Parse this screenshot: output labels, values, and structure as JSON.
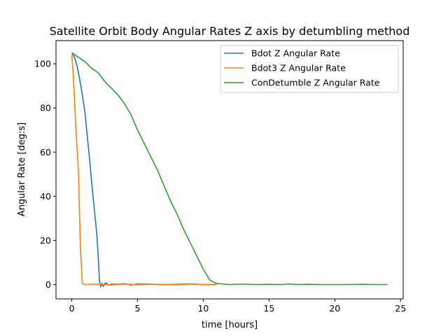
{
  "chart_data": {
    "type": "line",
    "title": "Satellite Orbit Body Angular Rates Z axis by detumbling method",
    "xlabel": "time [hours]",
    "ylabel": "Angular Rate [deg:s]",
    "xlim": [
      -1.2,
      25.2
    ],
    "ylim": [
      -6.5,
      110.5
    ],
    "xticks": [
      0,
      5,
      10,
      15,
      20,
      25
    ],
    "yticks": [
      0,
      20,
      40,
      60,
      80,
      100
    ],
    "legend_position": "top-right",
    "grid": false,
    "series": [
      {
        "name": "Bdot Z Angular Rate",
        "color": "#1f77b4",
        "points": [
          [
            0,
            105
          ],
          [
            0.2,
            103
          ],
          [
            0.4,
            99
          ],
          [
            0.6,
            93
          ],
          [
            0.8,
            86
          ],
          [
            1.0,
            78
          ],
          [
            1.1,
            72
          ],
          [
            1.2,
            66
          ],
          [
            1.3,
            60
          ],
          [
            1.4,
            54
          ],
          [
            1.5,
            47
          ],
          [
            1.6,
            41
          ],
          [
            1.7,
            35
          ],
          [
            1.8,
            29
          ],
          [
            1.9,
            23
          ],
          [
            2.0,
            14
          ],
          [
            2.1,
            2
          ],
          [
            2.2,
            -1
          ],
          [
            2.3,
            0.5
          ],
          [
            2.4,
            -0.8
          ],
          [
            2.5,
            0.3
          ],
          [
            2.6,
            0.8
          ],
          [
            2.8,
            -0.3
          ],
          [
            3.0,
            0.2
          ],
          [
            3.5,
            0.1
          ],
          [
            4.0,
            0.4
          ],
          [
            4.5,
            -0.2
          ],
          [
            5.0,
            0.3
          ],
          [
            6.0,
            0.1
          ],
          [
            7.0,
            0
          ],
          [
            8.0,
            0.1
          ],
          [
            9.0,
            0.3
          ],
          [
            10.0,
            0
          ],
          [
            11.0,
            0
          ]
        ]
      },
      {
        "name": "Bdot3 Z Angular Rate",
        "color": "#ff7f0e",
        "points": [
          [
            0,
            104
          ],
          [
            0.1,
            96
          ],
          [
            0.2,
            85
          ],
          [
            0.3,
            72
          ],
          [
            0.4,
            62
          ],
          [
            0.5,
            52
          ],
          [
            0.55,
            40
          ],
          [
            0.6,
            30
          ],
          [
            0.65,
            18
          ],
          [
            0.72,
            10
          ],
          [
            0.8,
            0.5
          ],
          [
            1.0,
            0
          ],
          [
            1.5,
            0.2
          ],
          [
            2.0,
            0.1
          ],
          [
            3.0,
            -0.2
          ],
          [
            4.0,
            0.2
          ],
          [
            5.0,
            0
          ],
          [
            6.0,
            0.2
          ],
          [
            7.0,
            0
          ],
          [
            8.0,
            -0.1
          ],
          [
            9.0,
            0.2
          ],
          [
            10.0,
            0
          ],
          [
            11.0,
            0.1
          ]
        ]
      },
      {
        "name": "ConDetumble Z Angular Rate",
        "color": "#2ca02c",
        "points": [
          [
            0,
            105
          ],
          [
            0.5,
            103
          ],
          [
            1.0,
            101
          ],
          [
            1.5,
            98
          ],
          [
            2.0,
            96
          ],
          [
            2.5,
            92
          ],
          [
            3.0,
            89
          ],
          [
            3.5,
            86
          ],
          [
            4.0,
            82
          ],
          [
            4.5,
            77
          ],
          [
            5.0,
            70
          ],
          [
            5.5,
            64
          ],
          [
            6.0,
            58
          ],
          [
            6.5,
            52
          ],
          [
            7.0,
            45
          ],
          [
            7.5,
            38
          ],
          [
            8.0,
            32
          ],
          [
            8.5,
            25
          ],
          [
            9.0,
            19
          ],
          [
            9.5,
            13
          ],
          [
            10.0,
            7
          ],
          [
            10.5,
            2
          ],
          [
            11.0,
            0.5
          ],
          [
            12.0,
            0
          ],
          [
            13.0,
            0.2
          ],
          [
            14.0,
            0
          ],
          [
            15.0,
            0.1
          ],
          [
            16.0,
            0
          ],
          [
            16.5,
            0.3
          ],
          [
            17.0,
            0
          ],
          [
            18.0,
            0.1
          ],
          [
            19.0,
            0
          ],
          [
            20.0,
            0
          ],
          [
            21.0,
            0
          ],
          [
            22.0,
            0.1
          ],
          [
            23.0,
            0
          ],
          [
            24.0,
            0
          ]
        ]
      }
    ]
  }
}
